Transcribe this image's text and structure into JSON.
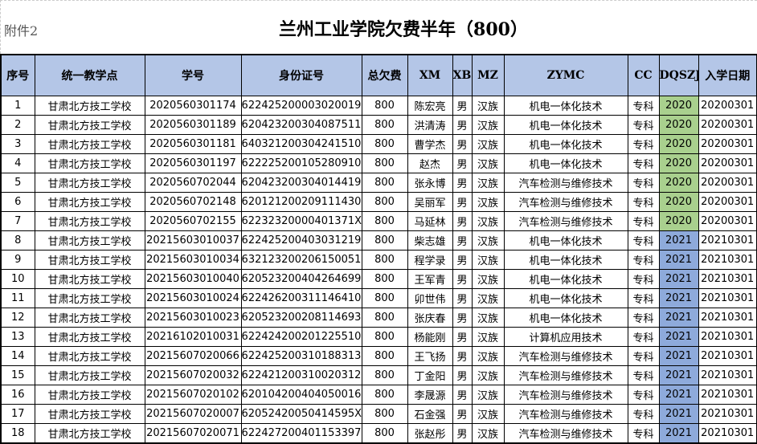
{
  "attachment_label": "附件2",
  "title": "兰州工业学院欠费半年（800）",
  "colors": {
    "header_bg": "#b4c6e7",
    "year_2020_bg": "#a9d08e",
    "year_2021_bg": "#8eaadb"
  },
  "columns": [
    "序号",
    "统一教学点",
    "学号",
    "身份证号",
    "总欠费",
    "XM",
    "XB",
    "MZ",
    "ZYMC",
    "CC",
    "DQSZJ",
    "入学日期"
  ],
  "rows": [
    [
      "1",
      "甘肃北方技工学校",
      "2020560301174",
      "622425200003020019",
      "800",
      "陈宏亮",
      "男",
      "汉族",
      "机电一体化技术",
      "专科",
      "2020",
      "20200301"
    ],
    [
      "2",
      "甘肃北方技工学校",
      "2020560301189",
      "620423200304087511",
      "800",
      "洪清涛",
      "男",
      "汉族",
      "机电一体化技术",
      "专科",
      "2020",
      "20200301"
    ],
    [
      "3",
      "甘肃北方技工学校",
      "2020560301181",
      "640321200304241510",
      "800",
      "曹学杰",
      "男",
      "汉族",
      "机电一体化技术",
      "专科",
      "2020",
      "20200301"
    ],
    [
      "4",
      "甘肃北方技工学校",
      "2020560301197",
      "622225200105280910",
      "800",
      "赵杰",
      "男",
      "汉族",
      "机电一体化技术",
      "专科",
      "2020",
      "20200301"
    ],
    [
      "5",
      "甘肃北方技工学校",
      "2020560702044",
      "620423200304014419",
      "800",
      "张永博",
      "男",
      "汉族",
      "汽车检测与维修技术",
      "专科",
      "2020",
      "20200301"
    ],
    [
      "6",
      "甘肃北方技工学校",
      "2020560702148",
      "620121200209111430",
      "800",
      "吴丽军",
      "男",
      "汉族",
      "汽车检测与维修技术",
      "专科",
      "2020",
      "20200301"
    ],
    [
      "7",
      "甘肃北方技工学校",
      "2020560702155",
      "62232320000401371X",
      "800",
      "马延林",
      "男",
      "汉族",
      "汽车检测与维修技术",
      "专科",
      "2020",
      "20200301"
    ],
    [
      "8",
      "甘肃北方技工学校",
      "20215603010037",
      "622425200403031219",
      "800",
      "柴志雄",
      "男",
      "汉族",
      "机电一体化技术",
      "专科",
      "2021",
      "20210301"
    ],
    [
      "9",
      "甘肃北方技工学校",
      "20215603010034",
      "632123200206150051",
      "800",
      "程学录",
      "男",
      "汉族",
      "机电一体化技术",
      "专科",
      "2021",
      "20210301"
    ],
    [
      "10",
      "甘肃北方技工学校",
      "20215603010040",
      "620523200404264699",
      "800",
      "王军青",
      "男",
      "汉族",
      "机电一体化技术",
      "专科",
      "2021",
      "20210301"
    ],
    [
      "11",
      "甘肃北方技工学校",
      "20215603010024",
      "622426200311146410",
      "800",
      "卯世伟",
      "男",
      "汉族",
      "机电一体化技术",
      "专科",
      "2021",
      "20210301"
    ],
    [
      "12",
      "甘肃北方技工学校",
      "20215603010023",
      "620523200208114693",
      "800",
      "张庆春",
      "男",
      "汉族",
      "机电一体化技术",
      "专科",
      "2021",
      "20210301"
    ],
    [
      "13",
      "甘肃北方技工学校",
      "20216102010031",
      "622424200201225510",
      "800",
      "杨能刚",
      "男",
      "汉族",
      "计算机应用技术",
      "专科",
      "2021",
      "20210301"
    ],
    [
      "14",
      "甘肃北方技工学校",
      "20215607020066",
      "622425200310188313",
      "800",
      "王飞扬",
      "男",
      "汉族",
      "汽车检测与维修技术",
      "专科",
      "2021",
      "20210301"
    ],
    [
      "15",
      "甘肃北方技工学校",
      "20215607020032",
      "622421200310020312",
      "800",
      "丁金阳",
      "男",
      "汉族",
      "汽车检测与维修技术",
      "专科",
      "2021",
      "20210301"
    ],
    [
      "16",
      "甘肃北方技工学校",
      "20215607020102",
      "620104200404050016",
      "800",
      "李晟源",
      "男",
      "汉族",
      "汽车检测与维修技术",
      "专科",
      "2021",
      "20210301"
    ],
    [
      "17",
      "甘肃北方技工学校",
      "20215607020007",
      "62052420050414595X",
      "800",
      "石金强",
      "男",
      "汉族",
      "汽车检测与维修技术",
      "专科",
      "2021",
      "20210301"
    ],
    [
      "18",
      "甘肃北方技工学校",
      "20215607020071",
      "622427200401153397",
      "800",
      "张赵彤",
      "男",
      "汉族",
      "汽车检测与维修技术",
      "专科",
      "2021",
      "20210301"
    ]
  ]
}
